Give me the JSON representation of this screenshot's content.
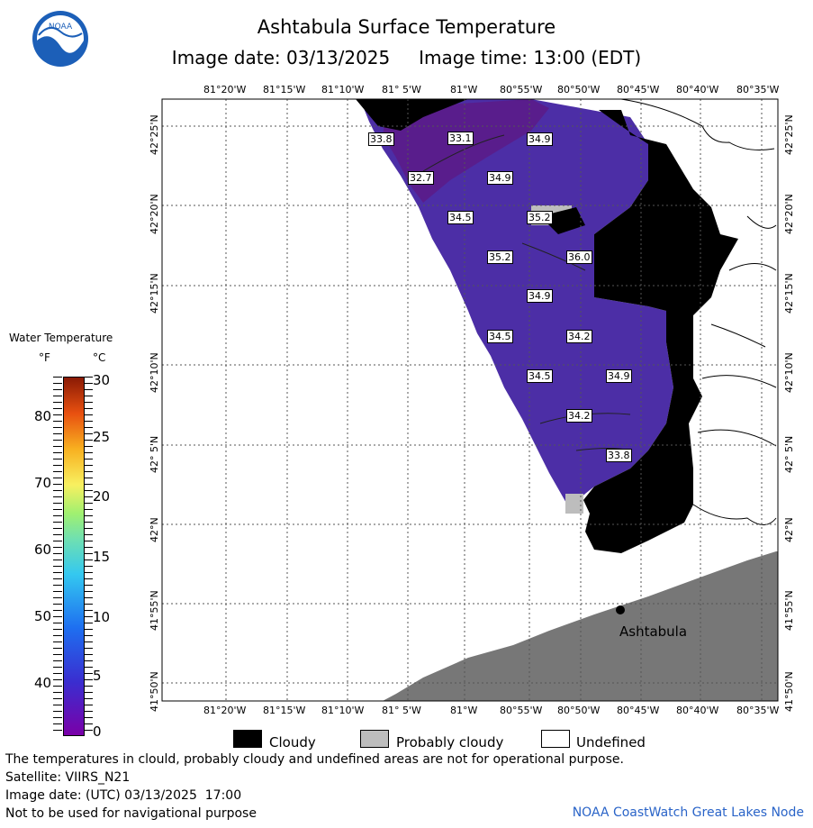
{
  "header": {
    "title": "Ashtabula Surface Temperature",
    "image_date_label": "Image date: 03/13/2025",
    "image_time_label": "Image time: 13:00 (EDT)",
    "logo_text": "NOAA"
  },
  "map": {
    "lon_labels": [
      "81°20'W",
      "81°15'W",
      "81°10'W",
      "81° 5'W",
      "81°W",
      "80°55'W",
      "80°50'W",
      "80°45'W",
      "80°40'W",
      "80°35'W"
    ],
    "lat_labels": [
      "42°25'N",
      "42°20'N",
      "42°15'N",
      "42°10'N",
      "42° 5'N",
      "42°N",
      "41°55'N",
      "41°50'N"
    ],
    "temperature_labels": [
      "33.8",
      "33.1",
      "34.9",
      "32.7",
      "34.9",
      "34.5",
      "35.2",
      "35.2",
      "36.0",
      "34.9",
      "34.5",
      "34.2",
      "34.5",
      "34.9",
      "34.2",
      "33.8"
    ],
    "city_label": "Ashtabula",
    "colors": {
      "water": "#4e2aa8",
      "water_dark": "#5d1f8c",
      "cloud": "#000000",
      "probably_cloud": "#bdbdbd",
      "land": "#7a7a7a"
    }
  },
  "legend": {
    "title": "Water Temperature",
    "unit_f": "°F",
    "unit_c": "°C",
    "f_ticks": [
      "80",
      "70",
      "60",
      "50",
      "40"
    ],
    "c_ticks": [
      "30",
      "25",
      "20",
      "15",
      "10",
      "5",
      "0"
    ]
  },
  "key": {
    "cloudy": "Cloudy",
    "probably_cloudy": "Probably cloudy",
    "undefined": "Undefined"
  },
  "footer": {
    "disclaimer": "The temperatures in clould, probably cloudy and undefined areas are not for operational purpose.",
    "satellite": "Satellite: VIIRS_N21",
    "utc_date": "Image date: (UTC) 03/13/2025  17:00",
    "nav_warning": "Not to be used for navigational purpose",
    "credit": "NOAA CoastWatch Great Lakes Node"
  }
}
